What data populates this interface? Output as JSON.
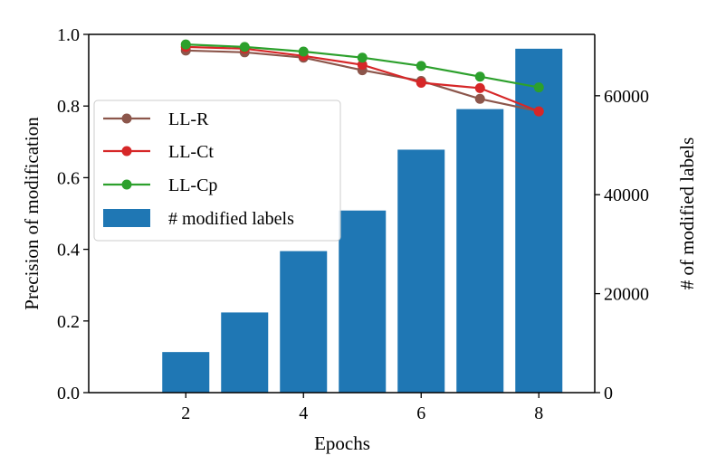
{
  "chart_data": {
    "type": "bar+line",
    "title": "",
    "xlabel": "Epochs",
    "ylabel_left": "Precision of modification",
    "ylabel_right": "# of modified labels",
    "xlim": [
      0.35,
      8.95
    ],
    "ylim_left": [
      0.0,
      1.0
    ],
    "ylim_right": [
      0,
      72400
    ],
    "x_ticks": [
      2,
      4,
      6,
      8
    ],
    "y_ticks_left": [
      0.0,
      0.2,
      0.4,
      0.6,
      0.8,
      1.0
    ],
    "y_ticks_right": [
      0,
      20000,
      40000,
      60000
    ],
    "x_tick_labels": [
      "2",
      "4",
      "6",
      "8"
    ],
    "y_tick_labels_left": [
      "0.0",
      "0.2",
      "0.4",
      "0.6",
      "0.8",
      "1.0"
    ],
    "y_tick_labels_right": [
      "0",
      "20000",
      "40000",
      "60000"
    ],
    "grid": false,
    "legend_position": "center-left",
    "bars": {
      "name": "# modified labels",
      "color": "#1f77b4",
      "x": [
        2,
        3,
        4,
        5,
        6,
        7,
        8
      ],
      "values": [
        8200,
        16200,
        28600,
        36800,
        49100,
        57300,
        69500
      ]
    },
    "series": [
      {
        "name": "LL-R",
        "color": "#8c564b",
        "x": [
          2,
          3,
          4,
          5,
          6,
          7,
          8
        ],
        "values": [
          0.955,
          0.95,
          0.935,
          0.9,
          0.87,
          0.82,
          0.785
        ]
      },
      {
        "name": "LL-Ct",
        "color": "#d62728",
        "x": [
          2,
          3,
          4,
          5,
          6,
          7,
          8
        ],
        "values": [
          0.965,
          0.96,
          0.94,
          0.915,
          0.865,
          0.85,
          0.785
        ]
      },
      {
        "name": "LL-Cp",
        "color": "#2ca02c",
        "x": [
          2,
          3,
          4,
          5,
          6,
          7,
          8
        ],
        "values": [
          0.972,
          0.965,
          0.952,
          0.935,
          0.912,
          0.882,
          0.852
        ]
      }
    ],
    "legend": [
      "LL-R",
      "LL-Ct",
      "LL-Cp",
      "# modified labels"
    ]
  }
}
